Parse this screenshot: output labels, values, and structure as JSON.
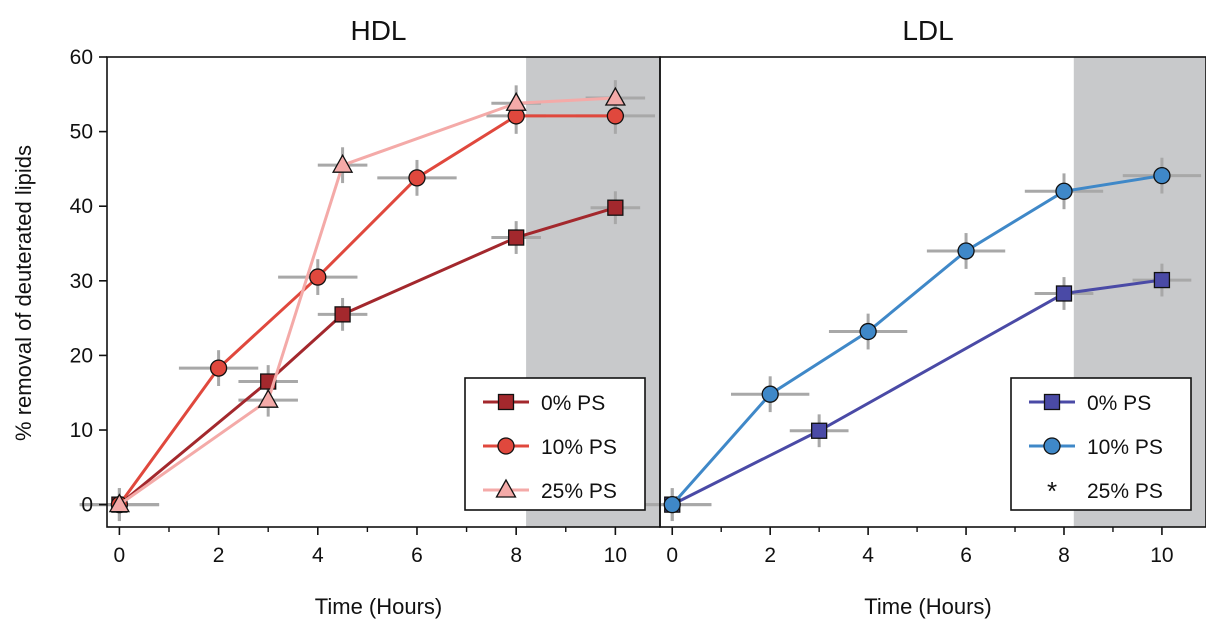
{
  "figure": {
    "ylabel": "% removal of deuterated lipids"
  },
  "chart_data": [
    {
      "type": "line",
      "title": "HDL",
      "xlabel": "Time (Hours)",
      "ylabel": "% removal of deuterated lipids",
      "xlim": [
        -0.25,
        10.9
      ],
      "ylim": [
        -3,
        60
      ],
      "x_ticks": [
        "0",
        "2",
        "4",
        "6",
        "8",
        "10"
      ],
      "y_ticks": [
        "0",
        "10",
        "20",
        "30",
        "40",
        "50",
        "60"
      ],
      "shaded_region": {
        "x_start": 8.2,
        "color": "#c8c9cb"
      },
      "grid": false,
      "legend_position": "bottom-right",
      "series": [
        {
          "name": "0% PS",
          "marker": "square",
          "color": "#a3282d",
          "points": [
            {
              "x": 0,
              "y": 0,
              "xerr": 0.8,
              "yerr": 2.2
            },
            {
              "x": 3,
              "y": 16.5,
              "xerr": 0.6,
              "yerr": 2.2
            },
            {
              "x": 4.5,
              "y": 25.5,
              "xerr": 0.5,
              "yerr": 2.2
            },
            {
              "x": 8,
              "y": 35.8,
              "xerr": 0.5,
              "yerr": 2.2
            },
            {
              "x": 10,
              "y": 39.8,
              "xerr": 0.5,
              "yerr": 2.2
            }
          ]
        },
        {
          "name": "10% PS",
          "marker": "circle",
          "color": "#e0483d",
          "points": [
            {
              "x": 0,
              "y": 0,
              "xerr": 0.8,
              "yerr": 2.2
            },
            {
              "x": 2,
              "y": 18.3,
              "xerr": 0.8,
              "yerr": 2.4
            },
            {
              "x": 4,
              "y": 30.5,
              "xerr": 0.8,
              "yerr": 2.4
            },
            {
              "x": 6,
              "y": 43.8,
              "xerr": 0.8,
              "yerr": 2.4
            },
            {
              "x": 8,
              "y": 52.1,
              "xerr": 0.6,
              "yerr": 2.4
            },
            {
              "x": 10,
              "y": 52.1,
              "xerr": 0.8,
              "yerr": 2.4
            }
          ]
        },
        {
          "name": "25% PS",
          "marker": "triangle",
          "color": "#f4aaa8",
          "points": [
            {
              "x": 0,
              "y": 0,
              "xerr": 0.8,
              "yerr": 2.2
            },
            {
              "x": 3,
              "y": 14,
              "xerr": 0.6,
              "yerr": 2.2
            },
            {
              "x": 4.5,
              "y": 45.5,
              "xerr": 0.5,
              "yerr": 2.4
            },
            {
              "x": 8,
              "y": 53.8,
              "xerr": 0.5,
              "yerr": 2.4
            },
            {
              "x": 10,
              "y": 54.5,
              "xerr": 0.6,
              "yerr": 2.4
            }
          ]
        }
      ]
    },
    {
      "type": "line",
      "title": "LDL",
      "xlabel": "Time (Hours)",
      "ylabel": "",
      "xlim": [
        -0.25,
        10.9
      ],
      "ylim": [
        -3,
        60
      ],
      "x_ticks": [
        "0",
        "2",
        "4",
        "6",
        "8",
        "10"
      ],
      "shaded_region": {
        "x_start": 8.2,
        "color": "#c8c9cb"
      },
      "grid": false,
      "legend_position": "bottom-right",
      "series": [
        {
          "name": "0% PS",
          "marker": "square",
          "color": "#4a4aa6",
          "points": [
            {
              "x": 0,
              "y": 0,
              "xerr": 0.8,
              "yerr": 2.2
            },
            {
              "x": 3,
              "y": 9.9,
              "xerr": 0.6,
              "yerr": 2.2
            },
            {
              "x": 8,
              "y": 28.3,
              "xerr": 0.6,
              "yerr": 2.2
            },
            {
              "x": 10,
              "y": 30.1,
              "xerr": 0.6,
              "yerr": 2.2
            }
          ]
        },
        {
          "name": "10% PS",
          "marker": "circle",
          "color": "#3f88c8",
          "points": [
            {
              "x": 0,
              "y": 0,
              "xerr": 0.8,
              "yerr": 2.2
            },
            {
              "x": 2,
              "y": 14.8,
              "xerr": 0.8,
              "yerr": 2.4
            },
            {
              "x": 4,
              "y": 23.2,
              "xerr": 0.8,
              "yerr": 2.4
            },
            {
              "x": 6,
              "y": 34,
              "xerr": 0.8,
              "yerr": 2.4
            },
            {
              "x": 8,
              "y": 42,
              "xerr": 0.8,
              "yerr": 2.4
            },
            {
              "x": 10,
              "y": 44.1,
              "xerr": 0.8,
              "yerr": 2.4
            }
          ]
        },
        {
          "name": "25% PS",
          "marker": "asterisk",
          "color": "#111111",
          "points": []
        }
      ]
    }
  ]
}
